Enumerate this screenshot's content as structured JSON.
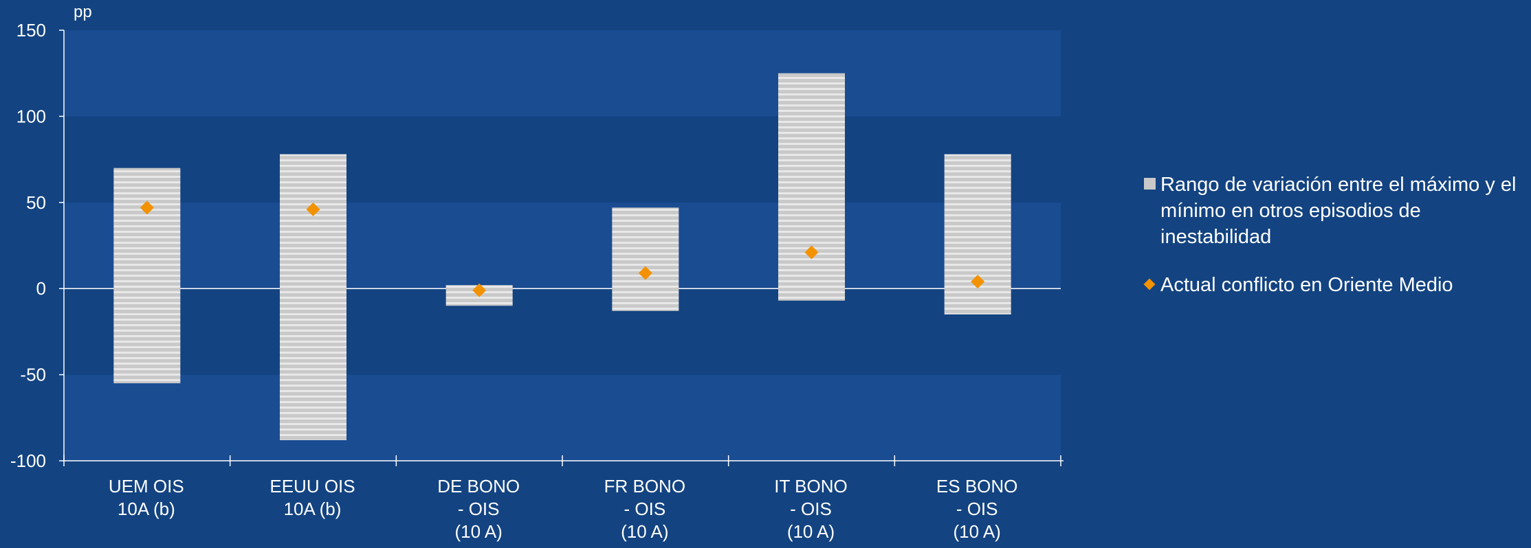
{
  "chart_data": {
    "type": "bar",
    "ylabel": "pp",
    "ylim": [
      -100,
      150
    ],
    "yticks": [
      -100,
      -50,
      0,
      50,
      100,
      150
    ],
    "categories": [
      [
        "UEM OIS",
        "10A (b)"
      ],
      [
        "EEUU OIS",
        "10A (b)"
      ],
      [
        "DE BONO",
        "- OIS",
        "(10 A)"
      ],
      [
        "FR BONO",
        "- OIS",
        "(10 A)"
      ],
      [
        "IT BONO",
        "- OIS",
        "(10 A)"
      ],
      [
        "ES BONO",
        "- OIS",
        "(10 A)"
      ]
    ],
    "series": [
      {
        "name": "Rango de variación entre el máximo y el mínimo en otros episodios de inestabilidad",
        "type": "range",
        "min": [
          -55,
          -88,
          -10,
          -13,
          -7,
          -15
        ],
        "max": [
          70,
          78,
          2,
          47,
          125,
          78
        ]
      },
      {
        "name": "Actual conflicto en Oriente Medio",
        "type": "marker",
        "values": [
          47,
          46,
          -1,
          9,
          21,
          4
        ]
      }
    ],
    "legend_position": "right",
    "grid": "horizontal bands"
  },
  "colors": {
    "background": "#134381",
    "band_light": "#1a4c92",
    "range_fill": "#c9c9c9",
    "range_stripe": "#e6e6e6",
    "marker": "#f39200",
    "axis": "#ffffff"
  },
  "legend": {
    "range_label": "Rango de variación entre el máximo y el mínimo en otros episodios de inestabilidad",
    "marker_label": "Actual conflicto en Oriente Medio"
  }
}
